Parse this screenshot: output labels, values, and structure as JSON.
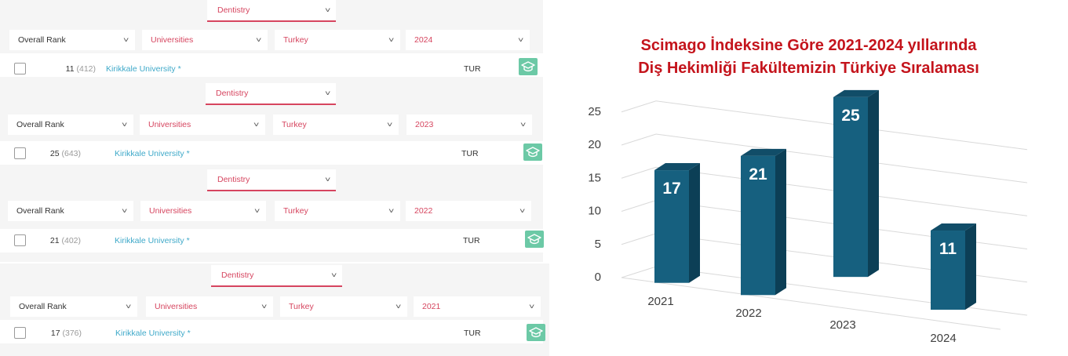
{
  "panels": [
    {
      "discipline": "Dentistry",
      "filters": {
        "rank_type": "Overall Rank",
        "category": "Universities",
        "country": "Turkey",
        "year": "2024"
      },
      "row": {
        "rank": "11",
        "overall": "(412)",
        "university": "Kirikkale University *",
        "country_code": "TUR",
        "icon": "graduation-cap-icon"
      }
    },
    {
      "discipline": "Dentistry",
      "filters": {
        "rank_type": "Overall Rank",
        "category": "Universities",
        "country": "Turkey",
        "year": "2023"
      },
      "row": {
        "rank": "25",
        "overall": "(643)",
        "university": "Kirikkale University *",
        "country_code": "TUR",
        "icon": "graduation-cap-icon"
      }
    },
    {
      "discipline": "Dentistry",
      "filters": {
        "rank_type": "Overall Rank",
        "category": "Universities",
        "country": "Turkey",
        "year": "2022"
      },
      "row": {
        "rank": "21",
        "overall": "(402)",
        "university": "Kirikkale University *",
        "country_code": "TUR",
        "icon": "graduation-cap-icon"
      }
    },
    {
      "discipline": "Dentistry",
      "filters": {
        "rank_type": "Overall Rank",
        "category": "Universities",
        "country": "Turkey",
        "year": "2021"
      },
      "row": {
        "rank": "17",
        "overall": "(376)",
        "university": "Kirikkale University *",
        "country_code": "TUR",
        "icon": "graduation-cap-icon"
      }
    }
  ],
  "chart_data": {
    "type": "bar",
    "title_lines": [
      "Scimago İndeksine Göre 2021-2024 yıllarında",
      "Diş Hekimliği Fakültemizin Türkiye Sıralaması"
    ],
    "categories": [
      "2021",
      "2022",
      "2023",
      "2024"
    ],
    "values": [
      17,
      21,
      25,
      11
    ],
    "data_labels": [
      "17",
      "21",
      "25",
      "11"
    ],
    "yticks": [
      "0",
      "5",
      "10",
      "15",
      "20",
      "25"
    ],
    "ylim": [
      0,
      25
    ],
    "grid": true,
    "legend": "none",
    "bar_color": "#16607f",
    "title_color": "#c4141c"
  }
}
